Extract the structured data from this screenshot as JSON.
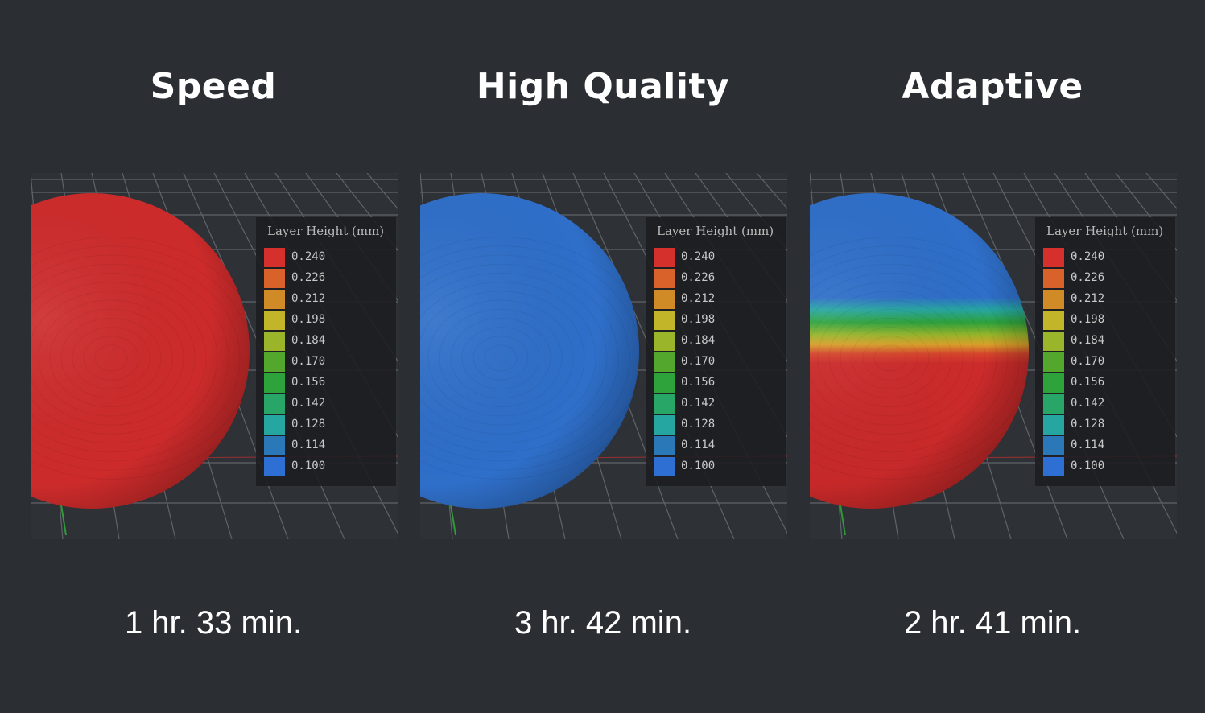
{
  "panels": [
    {
      "title": "Speed",
      "time": "1 hr. 33 min.",
      "mode": "uniform-thick"
    },
    {
      "title": "High Quality",
      "time": "3 hr. 42 min.",
      "mode": "uniform-thin"
    },
    {
      "title": "Adaptive",
      "time": "2 hr. 41 min.",
      "mode": "adaptive"
    }
  ],
  "legend": {
    "title": "Layer Height (mm)",
    "entries": [
      {
        "value": "0.240",
        "color": "#d6302c"
      },
      {
        "value": "0.226",
        "color": "#d9612a"
      },
      {
        "value": "0.212",
        "color": "#d08b26"
      },
      {
        "value": "0.198",
        "color": "#c2b52a"
      },
      {
        "value": "0.184",
        "color": "#9ab52a"
      },
      {
        "value": "0.170",
        "color": "#52a72c"
      },
      {
        "value": "0.156",
        "color": "#2ea23b"
      },
      {
        "value": "0.142",
        "color": "#27a667"
      },
      {
        "value": "0.128",
        "color": "#26a6a1"
      },
      {
        "value": "0.114",
        "color": "#2b78b9"
      },
      {
        "value": "0.100",
        "color": "#2e6fd4"
      }
    ]
  },
  "colors": {
    "background": "#2b2e33",
    "thick": "#cd2b2b",
    "thin": "#2f6fc9"
  }
}
